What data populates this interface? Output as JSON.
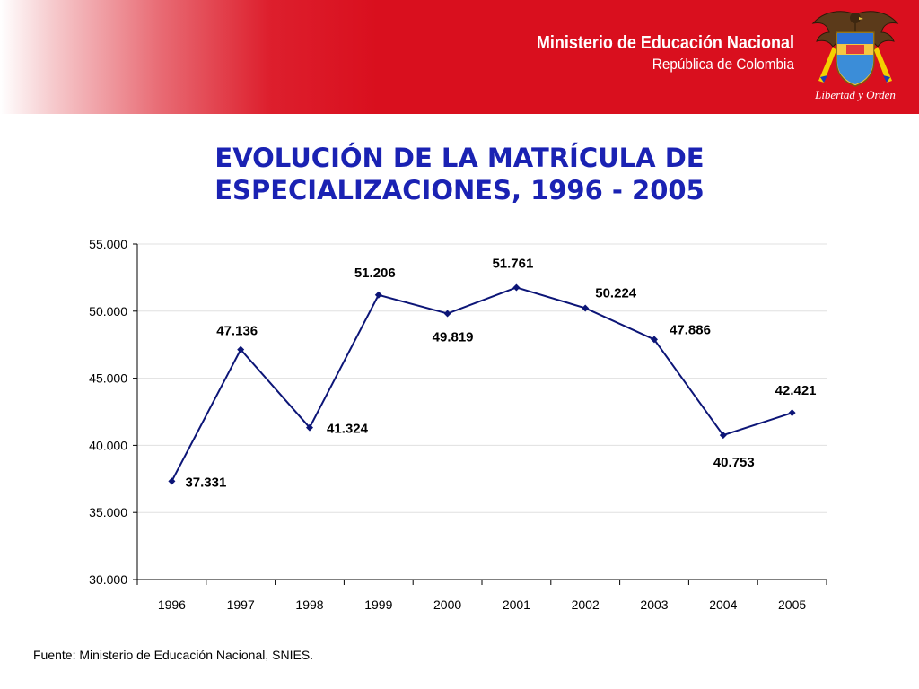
{
  "header": {
    "ministry": "Ministerio de Educación Nacional",
    "country": "República de Colombia",
    "motto": "Libertad y Orden",
    "emblem_icon": "colombia-coat-of-arms-icon",
    "background_color": "#d90f1e"
  },
  "chart_title": {
    "line1": "EVOLUCIÓN DE LA MATRÍCULA DE",
    "line2": "ESPECIALIZACIONES, 1996 - 2005"
  },
  "source": "Fuente: Ministerio de Educación Nacional, SNIES.",
  "chart_data": {
    "type": "line",
    "title": "EVOLUCIÓN DE LA MATRÍCULA DE ESPECIALIZACIONES, 1996 - 2005",
    "categories": [
      "1996",
      "1997",
      "1998",
      "1999",
      "2000",
      "2001",
      "2002",
      "2003",
      "2004",
      "2005"
    ],
    "values": [
      37331,
      47136,
      41324,
      51206,
      49819,
      51761,
      50224,
      47886,
      40753,
      42421
    ],
    "data_labels": [
      "37.331",
      "47.136",
      "41.324",
      "51.206",
      "49.819",
      "51.761",
      "50.224",
      "47.886",
      "40.753",
      "42.421"
    ],
    "yticks": [
      30000,
      35000,
      40000,
      45000,
      50000,
      55000
    ],
    "ytick_labels": [
      "30.000",
      "35.000",
      "40.000",
      "45.000",
      "50.000",
      "55.000"
    ],
    "ylim": [
      30000,
      55000
    ],
    "xlabel": "",
    "ylabel": "",
    "grid": "horizontal",
    "legend": "none",
    "line_color": "#0c1577"
  }
}
